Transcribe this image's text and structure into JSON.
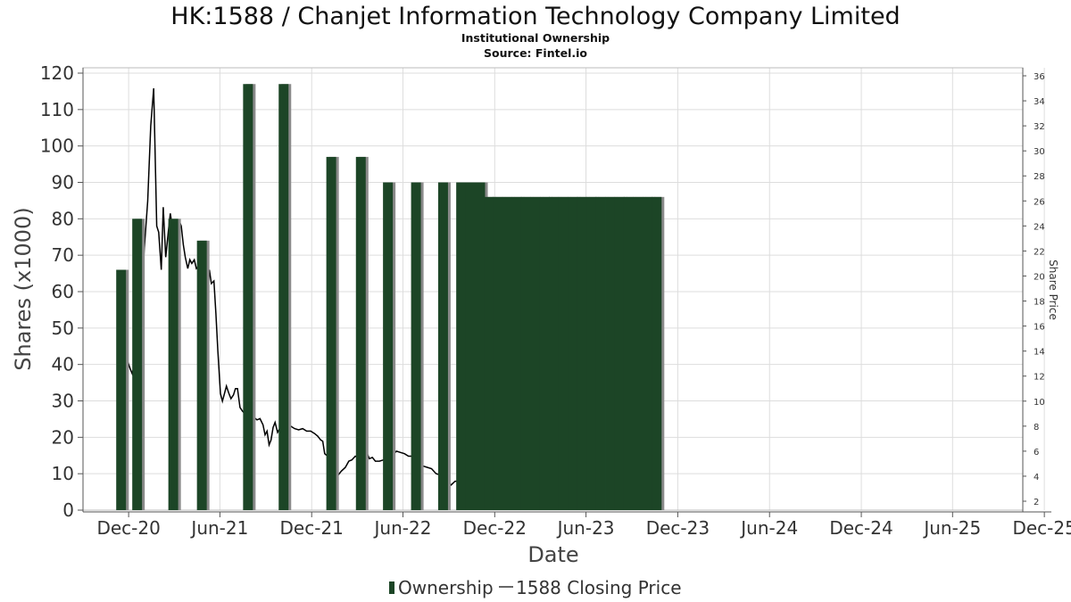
{
  "chart_data": {
    "type": "bar",
    "title": "HK:1588 / Chanjet Information Technology Company Limited",
    "subtitle": "Institutional Ownership",
    "source": "Source: Fintel.io",
    "xlabel": "Date",
    "ylabel": "Shares (x1000)",
    "y2label": "Share Price",
    "ylim": [
      0,
      120
    ],
    "y2lim": [
      2,
      36
    ],
    "xlim": [
      "2020-09-01",
      "2025-12-15"
    ],
    "grid": true,
    "legend_position": "bottom",
    "colors": {
      "bar": "#1c4526",
      "bar_shadow": "#8a8a8a",
      "line": "#000000",
      "grid": "#dddddd"
    },
    "yticks": [
      0,
      10,
      20,
      30,
      40,
      50,
      60,
      70,
      80,
      90,
      100,
      110,
      120
    ],
    "y2ticks": [
      2,
      4,
      6,
      8,
      10,
      12,
      14,
      16,
      18,
      20,
      22,
      24,
      26,
      28,
      30,
      32,
      34,
      36
    ],
    "xticks": [
      {
        "date": "2020-12-01",
        "label": "Dec-20"
      },
      {
        "date": "2021-06-01",
        "label": "Jun-21"
      },
      {
        "date": "2021-12-01",
        "label": "Dec-21"
      },
      {
        "date": "2022-06-01",
        "label": "Jun-22"
      },
      {
        "date": "2022-12-01",
        "label": "Dec-22"
      },
      {
        "date": "2023-06-01",
        "label": "Jun-23"
      },
      {
        "date": "2023-12-01",
        "label": "Dec-23"
      },
      {
        "date": "2024-06-01",
        "label": "Jun-24"
      },
      {
        "date": "2024-12-01",
        "label": "Dec-24"
      },
      {
        "date": "2025-06-01",
        "label": "Jun-25"
      },
      {
        "date": "2025-12-01",
        "label": "Dec-25"
      }
    ],
    "series": [
      {
        "name": "Ownership",
        "type": "bar",
        "axis": "left",
        "points": [
          {
            "x": "2020-11-16",
            "y": 66
          },
          {
            "x": "2020-12-18",
            "y": 80
          },
          {
            "x": "2021-02-28",
            "y": 80
          },
          {
            "x": "2021-04-26",
            "y": 74
          },
          {
            "x": "2021-07-27",
            "y": 117
          },
          {
            "x": "2021-10-06",
            "y": 117
          },
          {
            "x": "2022-01-09",
            "y": 97
          },
          {
            "x": "2022-03-09",
            "y": 97
          },
          {
            "x": "2022-05-02",
            "y": 90
          },
          {
            "x": "2022-06-27",
            "y": 90
          },
          {
            "x": "2022-08-20",
            "y": 90
          },
          {
            "x": "2022-09-25",
            "y": 90
          },
          {
            "x": "2022-10-14",
            "y": 90
          },
          {
            "x": "2022-11-02",
            "y": 90
          },
          {
            "x": "2022-11-19",
            "y": 86
          },
          {
            "x": "2022-12-07",
            "y": 86
          },
          {
            "x": "2022-12-26",
            "y": 86
          },
          {
            "x": "2023-01-14",
            "y": 86
          },
          {
            "x": "2023-02-01",
            "y": 86
          },
          {
            "x": "2023-02-20",
            "y": 86
          },
          {
            "x": "2023-03-11",
            "y": 86
          },
          {
            "x": "2023-03-29",
            "y": 86
          },
          {
            "x": "2023-04-17",
            "y": 86
          },
          {
            "x": "2023-05-06",
            "y": 86
          },
          {
            "x": "2023-05-24",
            "y": 86
          },
          {
            "x": "2023-06-12",
            "y": 86
          },
          {
            "x": "2023-06-30",
            "y": 86
          },
          {
            "x": "2023-07-19",
            "y": 86
          },
          {
            "x": "2023-08-07",
            "y": 86
          },
          {
            "x": "2023-08-25",
            "y": 86
          },
          {
            "x": "2023-09-13",
            "y": 86
          },
          {
            "x": "2023-10-02",
            "y": 86
          },
          {
            "x": "2023-10-20",
            "y": 86
          }
        ]
      },
      {
        "name": "1588 Closing Price",
        "type": "line",
        "axis": "right",
        "points": [
          {
            "x": "2020-11-16",
            "y": 14.5
          },
          {
            "x": "2020-11-20",
            "y": 13.8
          },
          {
            "x": "2020-11-27",
            "y": 13.4
          },
          {
            "x": "2020-12-04",
            "y": 12.6
          },
          {
            "x": "2020-12-08",
            "y": 12.2
          },
          {
            "x": "2020-12-12",
            "y": 12.8
          },
          {
            "x": "2020-12-18",
            "y": 12.9
          },
          {
            "x": "2020-12-24",
            "y": 16.5
          },
          {
            "x": "2021-01-01",
            "y": 22.0
          },
          {
            "x": "2021-01-08",
            "y": 26.0
          },
          {
            "x": "2021-01-14",
            "y": 32.0
          },
          {
            "x": "2021-01-20",
            "y": 35.0
          },
          {
            "x": "2021-01-26",
            "y": 24.0
          },
          {
            "x": "2021-01-30",
            "y": 23.5
          },
          {
            "x": "2021-02-04",
            "y": 20.5
          },
          {
            "x": "2021-02-08",
            "y": 25.5
          },
          {
            "x": "2021-02-13",
            "y": 21.5
          },
          {
            "x": "2021-02-18",
            "y": 23.5
          },
          {
            "x": "2021-02-22",
            "y": 25.0
          },
          {
            "x": "2021-02-26",
            "y": 24.0
          },
          {
            "x": "2021-03-03",
            "y": 23.4
          },
          {
            "x": "2021-03-07",
            "y": 24.5
          },
          {
            "x": "2021-03-11",
            "y": 24.5
          },
          {
            "x": "2021-03-16",
            "y": 24.0
          },
          {
            "x": "2021-03-20",
            "y": 22.5
          },
          {
            "x": "2021-03-24",
            "y": 21.5
          },
          {
            "x": "2021-03-29",
            "y": 20.6
          },
          {
            "x": "2021-04-02",
            "y": 21.3
          },
          {
            "x": "2021-04-06",
            "y": 21.0
          },
          {
            "x": "2021-04-11",
            "y": 21.3
          },
          {
            "x": "2021-04-15",
            "y": 20.6
          },
          {
            "x": "2021-04-20",
            "y": 20.8
          },
          {
            "x": "2021-04-24",
            "y": 20.0
          },
          {
            "x": "2021-04-28",
            "y": 17.4
          },
          {
            "x": "2021-05-02",
            "y": 16.2
          },
          {
            "x": "2021-05-07",
            "y": 18.0
          },
          {
            "x": "2021-05-11",
            "y": 20.5
          },
          {
            "x": "2021-05-15",
            "y": 19.4
          },
          {
            "x": "2021-05-20",
            "y": 19.6
          },
          {
            "x": "2021-05-24",
            "y": 17.0
          },
          {
            "x": "2021-05-28",
            "y": 14.0
          },
          {
            "x": "2021-06-02",
            "y": 10.6
          },
          {
            "x": "2021-06-06",
            "y": 10.0
          },
          {
            "x": "2021-06-10",
            "y": 10.6
          },
          {
            "x": "2021-06-14",
            "y": 11.2
          },
          {
            "x": "2021-06-19",
            "y": 10.6
          },
          {
            "x": "2021-06-23",
            "y": 10.2
          },
          {
            "x": "2021-06-28",
            "y": 10.5
          },
          {
            "x": "2021-07-02",
            "y": 11.0
          },
          {
            "x": "2021-07-06",
            "y": 11.0
          },
          {
            "x": "2021-07-11",
            "y": 9.5
          },
          {
            "x": "2021-07-16",
            "y": 9.2
          },
          {
            "x": "2021-07-21",
            "y": 9.0
          },
          {
            "x": "2021-07-27",
            "y": 9.3
          },
          {
            "x": "2021-08-02",
            "y": 9.0
          },
          {
            "x": "2021-08-08",
            "y": 8.7
          },
          {
            "x": "2021-08-14",
            "y": 8.5
          },
          {
            "x": "2021-08-20",
            "y": 8.6
          },
          {
            "x": "2021-08-26",
            "y": 8.1
          },
          {
            "x": "2021-08-30",
            "y": 7.3
          },
          {
            "x": "2021-09-03",
            "y": 7.6
          },
          {
            "x": "2021-09-07",
            "y": 6.5
          },
          {
            "x": "2021-09-11",
            "y": 6.9
          },
          {
            "x": "2021-09-15",
            "y": 7.9
          },
          {
            "x": "2021-09-19",
            "y": 8.3
          },
          {
            "x": "2021-09-24",
            "y": 7.5
          },
          {
            "x": "2021-09-28",
            "y": 7.8
          },
          {
            "x": "2021-10-02",
            "y": 7.7
          },
          {
            "x": "2021-10-06",
            "y": 7.9
          },
          {
            "x": "2021-10-12",
            "y": 8.0
          },
          {
            "x": "2021-10-20",
            "y": 8.0
          },
          {
            "x": "2021-10-28",
            "y": 7.8
          },
          {
            "x": "2021-11-05",
            "y": 7.7
          },
          {
            "x": "2021-11-13",
            "y": 7.8
          },
          {
            "x": "2021-11-21",
            "y": 7.6
          },
          {
            "x": "2021-11-29",
            "y": 7.6
          },
          {
            "x": "2021-12-07",
            "y": 7.4
          },
          {
            "x": "2021-12-13",
            "y": 7.2
          },
          {
            "x": "2021-12-19",
            "y": 6.9
          },
          {
            "x": "2021-12-23",
            "y": 6.8
          },
          {
            "x": "2021-12-27",
            "y": 5.8
          },
          {
            "x": "2022-01-02",
            "y": 5.6
          },
          {
            "x": "2022-01-09",
            "y": 4.7
          },
          {
            "x": "2022-01-12",
            "y": 4.5
          },
          {
            "x": "2022-01-15",
            "y": 3.6
          },
          {
            "x": "2022-01-21",
            "y": 4.0
          },
          {
            "x": "2022-01-29",
            "y": 4.4
          },
          {
            "x": "2022-02-06",
            "y": 4.7
          },
          {
            "x": "2022-02-13",
            "y": 5.2
          },
          {
            "x": "2022-02-19",
            "y": 5.3
          },
          {
            "x": "2022-02-26",
            "y": 5.6
          },
          {
            "x": "2022-03-05",
            "y": 5.5
          },
          {
            "x": "2022-03-09",
            "y": 5.6
          },
          {
            "x": "2022-03-15",
            "y": 5.6
          },
          {
            "x": "2022-03-21",
            "y": 5.9
          },
          {
            "x": "2022-03-26",
            "y": 5.4
          },
          {
            "x": "2022-04-01",
            "y": 5.5
          },
          {
            "x": "2022-04-07",
            "y": 5.2
          },
          {
            "x": "2022-04-15",
            "y": 5.2
          },
          {
            "x": "2022-04-23",
            "y": 5.3
          },
          {
            "x": "2022-05-02",
            "y": 5.4
          },
          {
            "x": "2022-05-11",
            "y": 5.7
          },
          {
            "x": "2022-05-19",
            "y": 6.0
          },
          {
            "x": "2022-05-27",
            "y": 5.9
          },
          {
            "x": "2022-06-04",
            "y": 5.8
          },
          {
            "x": "2022-06-12",
            "y": 5.6
          },
          {
            "x": "2022-06-20",
            "y": 5.6
          },
          {
            "x": "2022-06-27",
            "y": 5.3
          },
          {
            "x": "2022-07-04",
            "y": 5.0
          },
          {
            "x": "2022-07-12",
            "y": 4.8
          },
          {
            "x": "2022-07-20",
            "y": 4.7
          },
          {
            "x": "2022-07-28",
            "y": 4.6
          },
          {
            "x": "2022-08-06",
            "y": 4.2
          },
          {
            "x": "2022-08-14",
            "y": 4.1
          },
          {
            "x": "2022-08-20",
            "y": 4.0
          },
          {
            "x": "2022-08-28",
            "y": 3.6
          },
          {
            "x": "2022-09-05",
            "y": 3.3
          },
          {
            "x": "2022-09-13",
            "y": 3.6
          },
          {
            "x": "2022-09-21",
            "y": 3.6
          },
          {
            "x": "2022-09-29",
            "y": 3.4
          },
          {
            "x": "2022-10-07",
            "y": 3.2
          },
          {
            "x": "2022-10-14",
            "y": 3.3
          },
          {
            "x": "2022-10-22",
            "y": 3.1
          },
          {
            "x": "2022-11-02",
            "y": 2.9
          },
          {
            "x": "2022-11-19",
            "y": 3.2
          },
          {
            "x": "2022-12-07",
            "y": 3.1
          },
          {
            "x": "2022-12-26",
            "y": 3.1
          },
          {
            "x": "2023-01-14",
            "y": 3.0
          },
          {
            "x": "2023-02-01",
            "y": 3.1
          },
          {
            "x": "2023-02-20",
            "y": 3.4
          },
          {
            "x": "2023-03-11",
            "y": 3.9
          },
          {
            "x": "2023-03-29",
            "y": 4.6
          },
          {
            "x": "2023-04-17",
            "y": 5.7
          },
          {
            "x": "2023-05-06",
            "y": 7.0
          },
          {
            "x": "2023-05-24",
            "y": 7.3
          },
          {
            "x": "2023-06-12",
            "y": 6.6
          },
          {
            "x": "2023-06-30",
            "y": 6.9
          },
          {
            "x": "2023-07-19",
            "y": 6.7
          },
          {
            "x": "2023-08-07",
            "y": 7.8
          },
          {
            "x": "2023-08-25",
            "y": 8.3
          },
          {
            "x": "2023-09-13",
            "y": 8.0
          },
          {
            "x": "2023-10-02",
            "y": 7.8
          }
        ]
      }
    ]
  },
  "legend": [
    {
      "label": "Ownership",
      "swatch": "bar"
    },
    {
      "label": "1588 Closing Price",
      "swatch": "line"
    }
  ]
}
